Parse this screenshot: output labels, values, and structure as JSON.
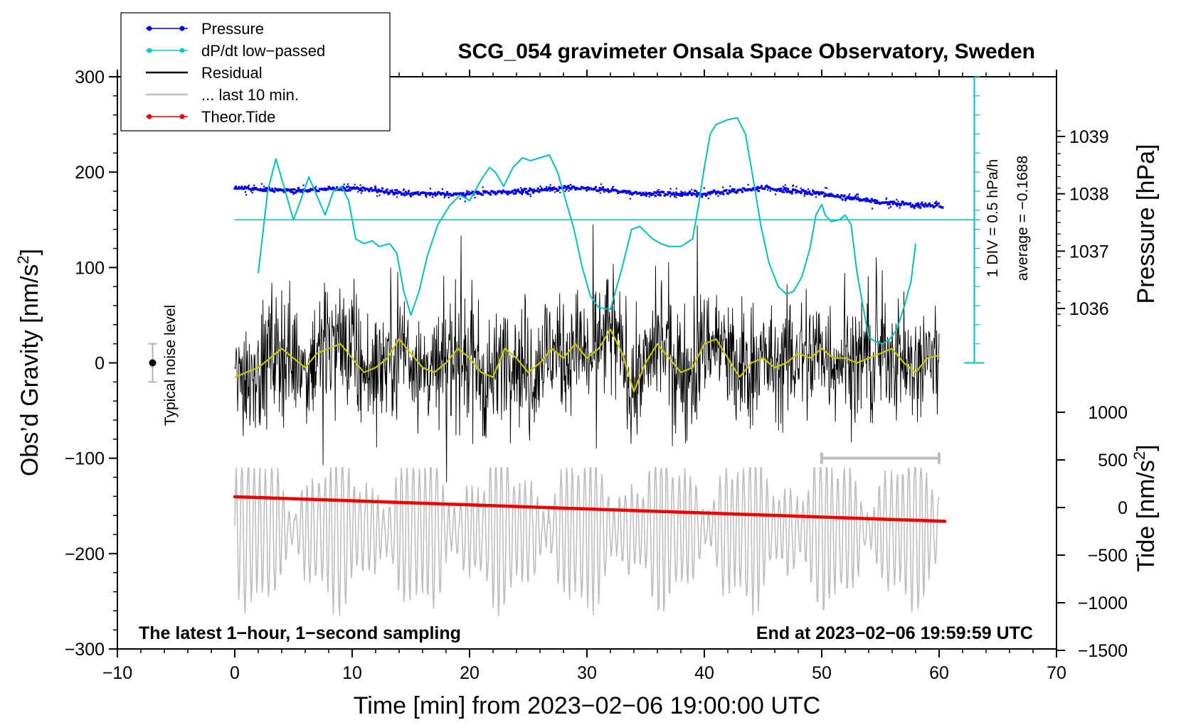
{
  "chart_data": {
    "type": "line",
    "title": "SCG_054 gravimeter Onsala Space Observatory, Sweden",
    "xlabel": "Time [min] from 2023−02−06 19:00:00 UTC",
    "ylabel_left_main": "Obs’d Gravity [nm/s",
    "ylabel_left_sup": "2",
    "ylabel_left_end": "]",
    "ylabel_right_pressure": "Pressure [hPa]",
    "ylabel_right_tide_main": "Tide [nm/s",
    "ylabel_right_tide_sup": "2",
    "ylabel_right_tide_end": "]",
    "xlim": [
      -10,
      70
    ],
    "ylim": [
      -300,
      300
    ],
    "x_ticks": [
      "−10",
      "0",
      "10",
      "20",
      "30",
      "40",
      "50",
      "60",
      "70"
    ],
    "y_ticks": [
      "300",
      "200",
      "100",
      "0",
      "−100",
      "−200",
      "−300"
    ],
    "pressure_ticks": [
      "1039",
      "1038",
      "1037",
      "1036"
    ],
    "pressure_tick_values": [
      1039,
      1038,
      1037,
      1036
    ],
    "tide_ticks": [
      "1000",
      "500",
      "0",
      "−500",
      "−1000",
      "−1500"
    ],
    "tide_tick_values": [
      1000,
      500,
      0,
      -500,
      -1000,
      -1500
    ],
    "dpdt_scale_label": "1 DIV = 0.5 hPa/h",
    "dpdt_average_label": "average = −0.1688",
    "noise_label": "Typical noise level",
    "footer_left": "The latest 1−hour, 1−second sampling",
    "footer_right": "End at 2023−02−06 19:59:59 UTC",
    "legend": [
      {
        "label": "Pressure",
        "color": "#0000ee",
        "marker": true
      },
      {
        "label": "dP/dt low−passed",
        "color": "#00c8c8",
        "marker": true
      },
      {
        "label": "Residual",
        "color": "#000000",
        "marker": false
      },
      {
        "label": "... last 10 min.",
        "color": "#bebebe",
        "marker": false
      },
      {
        "label": "Theor.Tide",
        "color": "#ee0000",
        "marker": true
      }
    ],
    "colors": {
      "pressure": "#0000ee",
      "dpdt": "#00c0c0",
      "residual": "#000000",
      "residual_smooth": "#c8c800",
      "last10": "#bebebe",
      "tide": "#ee0000"
    },
    "series": {
      "pressure_hPa": {
        "x": [
          0,
          5,
          10,
          15,
          20,
          25,
          28,
          30,
          35,
          40,
          45,
          50,
          55,
          58,
          60
        ],
        "y": [
          1038.1,
          1038.05,
          1038.1,
          1038.0,
          1038.0,
          1038.05,
          1038.1,
          1038.1,
          1038.0,
          1038.0,
          1038.1,
          1038.0,
          1037.85,
          1037.8,
          1037.8
        ]
      },
      "dpdt_lowpassed_plot_units": {
        "x": [
          2,
          2.8,
          3.5,
          4.3,
          5.0,
          5.6,
          6.3,
          7.0,
          7.7,
          8.4,
          9.1,
          9.7,
          10.3,
          11.0,
          11.7,
          12.3,
          13.2,
          13.8,
          14.4,
          15.0,
          15.7,
          16.4,
          17.3,
          18.3,
          19.2,
          20.0,
          20.9,
          21.7,
          22.2,
          22.9,
          23.7,
          24.5,
          25.2,
          26.0,
          26.8,
          27.5,
          28.2,
          28.9,
          29.6,
          30.3,
          31.0,
          32.0,
          33.0,
          33.8,
          34.5,
          35.0,
          35.6,
          36.3,
          37.0,
          38.0,
          39.0,
          39.5,
          40.0,
          40.5,
          41.0,
          42.0,
          42.8,
          43.5,
          44.2,
          44.8,
          45.5,
          46.3,
          47.0,
          47.6,
          48.3,
          49.0,
          49.5,
          50.0,
          50.3,
          50.8,
          51.5,
          52.0,
          52.5,
          53.0,
          53.5,
          54.0,
          54.6,
          55.2,
          55.8,
          56.4,
          57.0,
          57.6,
          58.0
        ],
        "y": [
          94,
          180,
          214,
          180,
          150,
          170,
          195,
          175,
          155,
          180,
          185,
          170,
          130,
          125,
          128,
          122,
          125,
          115,
          75,
          50,
          75,
          112,
          145,
          165,
          176,
          170,
          190,
          205,
          200,
          185,
          205,
          215,
          212,
          215,
          218,
          200,
          170,
          140,
          100,
          70,
          58,
          56,
          100,
          140,
          143,
          137,
          130,
          125,
          122,
          122,
          130,
          165,
          205,
          240,
          250,
          255,
          257,
          240,
          190,
          145,
          105,
          80,
          72,
          75,
          90,
          120,
          155,
          166,
          155,
          148,
          150,
          155,
          145,
          95,
          60,
          27,
          22,
          20,
          25,
          35,
          58,
          85,
          125
        ]
      },
      "residual_smoothed": {
        "x": [
          0,
          1,
          2,
          3,
          4,
          5,
          6,
          7,
          8,
          9,
          10,
          11,
          12,
          13,
          14,
          15,
          16,
          17,
          18,
          19,
          20,
          21,
          22,
          23,
          24,
          25,
          26,
          27,
          28,
          29,
          30,
          31,
          32,
          33,
          34,
          35,
          36,
          37,
          38,
          39,
          40,
          41,
          42,
          43,
          44,
          45,
          46,
          47,
          48,
          49,
          50,
          51,
          52,
          53,
          54,
          55,
          56,
          57,
          58,
          59,
          60
        ],
        "y": [
          -15,
          -10,
          -5,
          5,
          15,
          5,
          -5,
          10,
          15,
          20,
          5,
          -10,
          -5,
          5,
          25,
          10,
          -5,
          -10,
          0,
          15,
          5,
          -10,
          -15,
          15,
          5,
          -10,
          0,
          15,
          5,
          20,
          5,
          15,
          35,
          10,
          -30,
          0,
          20,
          5,
          -10,
          -5,
          20,
          25,
          5,
          -15,
          0,
          5,
          -5,
          0,
          10,
          5,
          15,
          5,
          5,
          0,
          5,
          10,
          15,
          0,
          -10,
          5,
          8
        ]
      },
      "tide_nm_s2": {
        "x": [
          0,
          60.5
        ],
        "y": [
          113,
          -145
        ]
      }
    },
    "last10_range_min": [
      50,
      60
    ]
  }
}
